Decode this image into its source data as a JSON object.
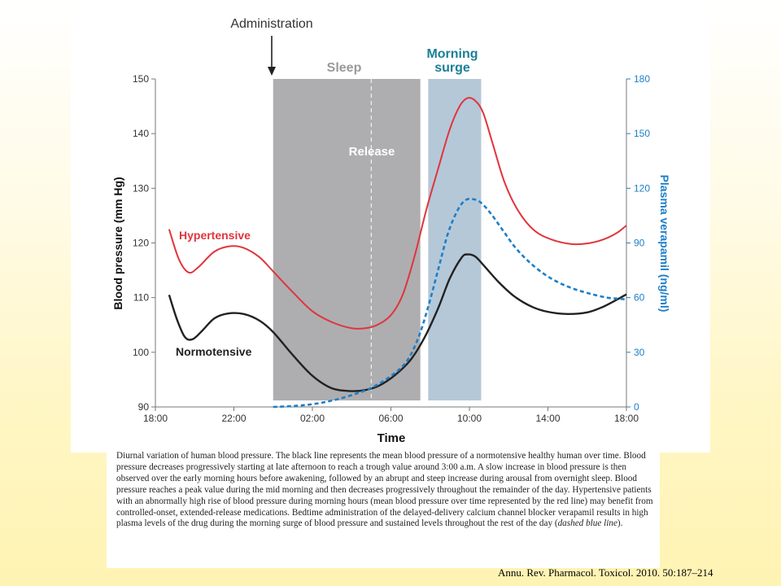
{
  "chart_data": {
    "type": "line",
    "xlabel": "Time",
    "ylabel": "Blood pressure (mm Hg)",
    "y2label": "Plasma verapamil (ng/ml)",
    "x_ticks": [
      "18:00",
      "22:00",
      "02:00",
      "06:00",
      "10:00",
      "14:00",
      "18:00"
    ],
    "ylim": [
      90,
      150
    ],
    "y_ticks": [
      "90",
      "100",
      "110",
      "120",
      "130",
      "140",
      "150"
    ],
    "y2lim": [
      0,
      180
    ],
    "y2_ticks": [
      "0",
      "30",
      "60",
      "90",
      "120",
      "150",
      "180"
    ],
    "x_unit": "hours after 18:00",
    "xlim": [
      0,
      24
    ],
    "annotations": {
      "administration": "Administration",
      "sleep": "Sleep",
      "release": "Release",
      "morning_surge_line1": "Morning",
      "morning_surge_line2": "surge"
    },
    "regions": {
      "sleep": [
        6,
        13.5
      ],
      "morning_surge": [
        13.9,
        16.6
      ],
      "release_line": 11
    },
    "colors": {
      "hypertensive": "#e0353c",
      "normotensive": "#222222",
      "verapamil": "#1e7fc8",
      "sleep_band": "#aeaeb0",
      "surge_band": "#b5c8d8",
      "surge_label": "#1a7f96"
    },
    "series": [
      {
        "name": "Hypertensive",
        "axis": "left",
        "points": [
          [
            0.7,
            122.5
          ],
          [
            1.2,
            117
          ],
          [
            1.7,
            114.6
          ],
          [
            2.2,
            115.6
          ],
          [
            3,
            118.4
          ],
          [
            3.8,
            119.4
          ],
          [
            4.5,
            119.1
          ],
          [
            5.3,
            117.4
          ],
          [
            6,
            114.8
          ],
          [
            7,
            111
          ],
          [
            8,
            107.5
          ],
          [
            9,
            105.5
          ],
          [
            10,
            104.4
          ],
          [
            10.7,
            104.4
          ],
          [
            11.3,
            105
          ],
          [
            12,
            106.8
          ],
          [
            12.6,
            110.5
          ],
          [
            13.2,
            117.5
          ],
          [
            13.8,
            126
          ],
          [
            14.4,
            133.5
          ],
          [
            15,
            140.8
          ],
          [
            15.5,
            145
          ],
          [
            15.9,
            146.5
          ],
          [
            16.3,
            146
          ],
          [
            16.7,
            143.8
          ],
          [
            17.2,
            138
          ],
          [
            17.8,
            131
          ],
          [
            18.5,
            125.8
          ],
          [
            19.3,
            122.3
          ],
          [
            20.2,
            120.6
          ],
          [
            21.2,
            119.8
          ],
          [
            22,
            119.9
          ],
          [
            22.8,
            120.6
          ],
          [
            23.5,
            121.8
          ],
          [
            24,
            123.2
          ]
        ]
      },
      {
        "name": "Normotensive",
        "axis": "left",
        "points": [
          [
            0.7,
            110.5
          ],
          [
            1.1,
            106
          ],
          [
            1.5,
            102.8
          ],
          [
            1.9,
            102.4
          ],
          [
            2.4,
            104
          ],
          [
            3,
            106.2
          ],
          [
            3.7,
            107.1
          ],
          [
            4.5,
            107
          ],
          [
            5.3,
            105.8
          ],
          [
            6,
            103.7
          ],
          [
            7,
            99.5
          ],
          [
            8,
            95.7
          ],
          [
            9,
            93.4
          ],
          [
            10,
            92.9
          ],
          [
            10.7,
            93.1
          ],
          [
            11.4,
            93.9
          ],
          [
            12.2,
            95.8
          ],
          [
            13,
            98.6
          ],
          [
            13.7,
            102.6
          ],
          [
            14.4,
            108
          ],
          [
            15,
            113.5
          ],
          [
            15.6,
            117.3
          ],
          [
            15.9,
            117.9
          ],
          [
            16.3,
            117.5
          ],
          [
            16.8,
            115.6
          ],
          [
            17.5,
            112.8
          ],
          [
            18.3,
            110.2
          ],
          [
            19.2,
            108.3
          ],
          [
            20,
            107.4
          ],
          [
            21,
            107
          ],
          [
            22,
            107.3
          ],
          [
            22.8,
            108.3
          ],
          [
            23.5,
            109.6
          ],
          [
            24,
            110.6
          ]
        ]
      },
      {
        "name": "",
        "axis": "right",
        "points": [
          [
            6,
            0
          ],
          [
            7,
            0.5
          ],
          [
            8,
            1.5
          ],
          [
            9,
            3.5
          ],
          [
            10,
            6.5
          ],
          [
            11,
            10.5
          ],
          [
            12,
            17
          ],
          [
            12.8,
            25
          ],
          [
            13.4,
            38
          ],
          [
            13.9,
            55
          ],
          [
            14.4,
            75
          ],
          [
            14.9,
            95
          ],
          [
            15.4,
            108
          ],
          [
            15.8,
            113.5
          ],
          [
            16.2,
            114
          ],
          [
            16.6,
            112
          ],
          [
            17.1,
            106
          ],
          [
            17.7,
            97
          ],
          [
            18.3,
            88
          ],
          [
            19,
            80
          ],
          [
            19.8,
            73
          ],
          [
            20.6,
            68
          ],
          [
            21.4,
            64.5
          ],
          [
            22.2,
            62
          ],
          [
            23,
            60
          ],
          [
            23.5,
            59.5
          ],
          [
            24,
            59
          ]
        ]
      }
    ],
    "series_labels": {
      "hypertensive": "Hypertensive",
      "normotensive": "Normotensive"
    }
  },
  "caption": {
    "text": "Diurnal variation of human blood pressure. The black line represents the mean blood pressure of a normotensive healthy human over time. Blood pressure decreases progressively starting at late afternoon to reach a trough value around 3:00 a.m. A slow increase in blood pressure is then observed over the early morning hours before awakening, followed by an abrupt and steep increase during arousal from overnight sleep. Blood pressure reaches a peak value during the mid morning and then decreases progressively throughout the remainder of the day. Hypertensive patients with an abnormally high rise of blood pressure during morning hours (mean blood pressure over time represented by the red line) may benefit from controlled-onset, extended-release medications. Bedtime administration of the delayed-delivery calcium channel blocker verapamil results in high plasma levels of the drug during the morning surge of blood pressure and sustained levels throughout the rest of the day (",
    "emphasis": "dashed blue line",
    "tail": ")."
  },
  "citation": "Annu. Rev. Pharmacol. Toxicol. 2010. 50:187–214"
}
